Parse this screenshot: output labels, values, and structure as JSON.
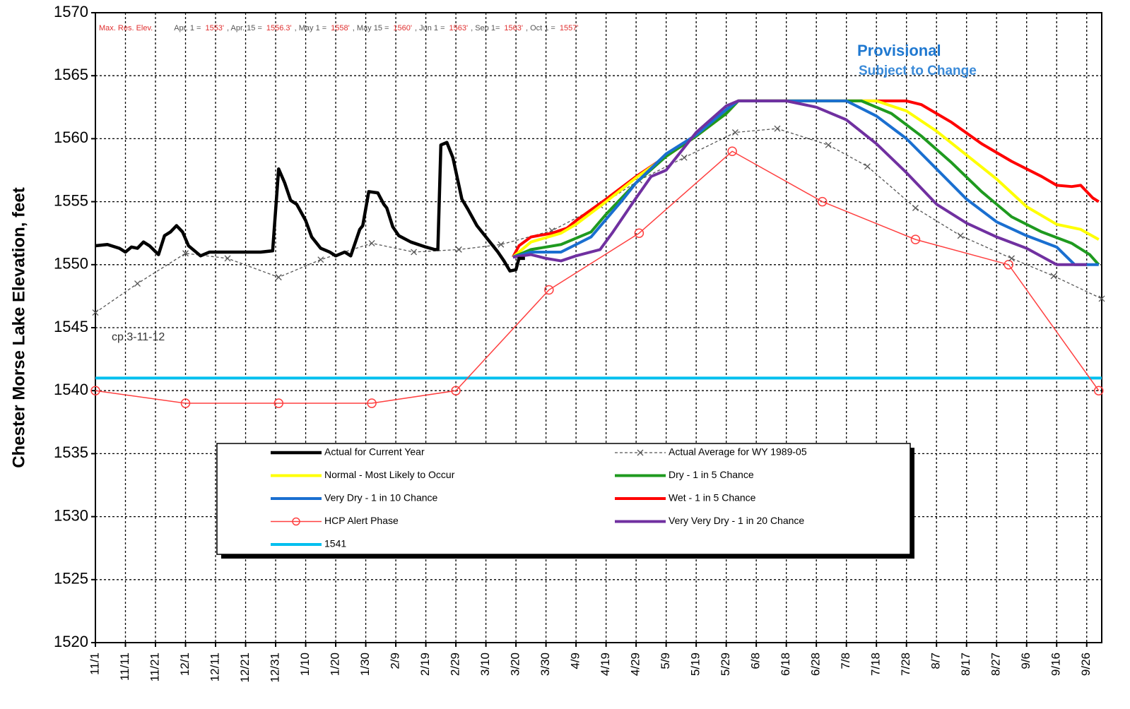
{
  "chart_data": {
    "type": "line",
    "ylabel": "Chester Morse Lake Elevation, feet",
    "header": {
      "label": "Max. Res. Elev.",
      "items": [
        {
          "label": "Apr. 1 =",
          "value": "1553'"
        },
        {
          "label": ", Apr. 15 =",
          "value": "1556.3'"
        },
        {
          "label": ", May 1 =",
          "value": "1558'"
        },
        {
          "label": ", May 15 =",
          "value": "1560'"
        },
        {
          "label": ", Jun 1 =",
          "value": "1563'"
        },
        {
          "label": ", Sep 1=",
          "value": "1563'"
        },
        {
          "label": ", Oct 1 =",
          "value": "1557'"
        }
      ]
    },
    "stamp": [
      "Provisional",
      "Subject to Change"
    ],
    "note": "cp 3-11-12",
    "ylim": [
      1520,
      1570
    ],
    "yticks": [
      1520,
      1525,
      1530,
      1535,
      1540,
      1545,
      1550,
      1555,
      1560,
      1565,
      1570
    ],
    "xlim": [
      0,
      335
    ],
    "xticks": [
      {
        "value": 0,
        "label": "11/1"
      },
      {
        "value": 10,
        "label": "11/11"
      },
      {
        "value": 20,
        "label": "11/21"
      },
      {
        "value": 30,
        "label": "12/1"
      },
      {
        "value": 40,
        "label": "12/11"
      },
      {
        "value": 50,
        "label": "12/21"
      },
      {
        "value": 60,
        "label": "12/31"
      },
      {
        "value": 70,
        "label": "1/10"
      },
      {
        "value": 80,
        "label": "1/20"
      },
      {
        "value": 90,
        "label": "1/30"
      },
      {
        "value": 100,
        "label": "2/9"
      },
      {
        "value": 110,
        "label": "2/19"
      },
      {
        "value": 120,
        "label": "2/29"
      },
      {
        "value": 130,
        "label": "3/10"
      },
      {
        "value": 140,
        "label": "3/20"
      },
      {
        "value": 150,
        "label": "3/30"
      },
      {
        "value": 160,
        "label": "4/9"
      },
      {
        "value": 170,
        "label": "4/19"
      },
      {
        "value": 180,
        "label": "4/29"
      },
      {
        "value": 190,
        "label": "5/9"
      },
      {
        "value": 200,
        "label": "5/19"
      },
      {
        "value": 210,
        "label": "5/29"
      },
      {
        "value": 220,
        "label": "6/8"
      },
      {
        "value": 230,
        "label": "6/18"
      },
      {
        "value": 240,
        "label": "6/28"
      },
      {
        "value": 250,
        "label": "7/8"
      },
      {
        "value": 260,
        "label": "7/18"
      },
      {
        "value": 270,
        "label": "7/28"
      },
      {
        "value": 280,
        "label": "8/7"
      },
      {
        "value": 290,
        "label": "8/17"
      },
      {
        "value": 300,
        "label": "8/27"
      },
      {
        "value": 310,
        "label": "9/6"
      },
      {
        "value": 320,
        "label": "9/16"
      },
      {
        "value": 330,
        "label": "9/26"
      }
    ],
    "grid": true,
    "series": [
      {
        "name": "Actual for Current Year",
        "color": "#000000",
        "style": "bold",
        "x": [
          0,
          4,
          8,
          10,
          12,
          14,
          16,
          18,
          21,
          23,
          25,
          27,
          29,
          31,
          35,
          38,
          45,
          55,
          59,
          61,
          63,
          65,
          67,
          70,
          72,
          75,
          78,
          80,
          83,
          85,
          88,
          89,
          91,
          94,
          96,
          97,
          99,
          101,
          105,
          110,
          113,
          114,
          115,
          117,
          119,
          122,
          124,
          127,
          131,
          134,
          136,
          138,
          140,
          141,
          143
        ],
        "values": [
          1551.5,
          1551.6,
          1551.3,
          1551,
          1551.4,
          1551.3,
          1551.8,
          1551.5,
          1550.8,
          1552.3,
          1552.6,
          1553.1,
          1552.6,
          1551.5,
          1550.7,
          1551,
          1551,
          1551,
          1551.1,
          1557.6,
          1556.5,
          1555.1,
          1554.8,
          1553.5,
          1552.2,
          1551.3,
          1551,
          1550.7,
          1551,
          1550.7,
          1552.8,
          1553.1,
          1555.8,
          1555.7,
          1554.8,
          1554.5,
          1553,
          1552.3,
          1551.8,
          1551.4,
          1551.2,
          1551.2,
          1559.5,
          1559.7,
          1558.5,
          1555.2,
          1554.4,
          1553.1,
          1551.9,
          1551,
          1550.3,
          1549.5,
          1549.6,
          1550.5,
          1550.5
        ]
      },
      {
        "name": "Actual Average for WY 1989-05",
        "color": "#555555",
        "style": "dashed",
        "marker": "x",
        "x": [
          0,
          14,
          30,
          44,
          61,
          75,
          92,
          106,
          121,
          135,
          152,
          168,
          181,
          196,
          213,
          227,
          244,
          257,
          273,
          288,
          305,
          319,
          335
        ],
        "values": [
          1546.2,
          1548.5,
          1550.9,
          1550.5,
          1549,
          1550.4,
          1551.7,
          1551,
          1551.2,
          1551.6,
          1552.7,
          1554.7,
          1556.7,
          1558.5,
          1560.5,
          1560.8,
          1559.5,
          1557.8,
          1554.5,
          1552.3,
          1550.5,
          1549.1,
          1547.3
        ]
      },
      {
        "name": "Normal - Most Likely to Occur",
        "color": "#ffff00",
        "style": "medium",
        "x": [
          139,
          145,
          155,
          160,
          170,
          180,
          190,
          200,
          210,
          214,
          260,
          270,
          280,
          290,
          300,
          310,
          320,
          328,
          334
        ],
        "values": [
          1550.6,
          1551.8,
          1552.5,
          1553.2,
          1555,
          1556.9,
          1558.6,
          1560.2,
          1562,
          1563,
          1563,
          1562.2,
          1560.6,
          1558.7,
          1556.8,
          1554.6,
          1553.2,
          1552.8,
          1552
        ]
      },
      {
        "name": "Dry - 1 in 5 Chance",
        "color": "#1f9a1f",
        "style": "medium",
        "x": [
          139,
          145,
          155,
          165,
          170,
          180,
          190,
          200,
          210,
          214,
          255,
          265,
          275,
          285,
          295,
          305,
          315,
          325,
          331,
          334
        ],
        "values": [
          1550.6,
          1551.2,
          1551.6,
          1552.6,
          1554,
          1556.5,
          1558.6,
          1560.2,
          1562,
          1563,
          1563,
          1562,
          1560.2,
          1558.1,
          1555.8,
          1553.8,
          1552.6,
          1551.7,
          1550.8,
          1550
        ]
      },
      {
        "name": "Very Dry - 1 in 10 Chance",
        "color": "#1a6fd0",
        "style": "medium",
        "x": [
          139,
          145,
          155,
          160,
          165,
          175,
          180,
          190,
          200,
          210,
          214,
          250,
          260,
          270,
          280,
          290,
          300,
          310,
          320,
          326,
          334
        ],
        "values": [
          1550.6,
          1551,
          1551,
          1551.6,
          1552.2,
          1555,
          1556.5,
          1558.8,
          1560.3,
          1562.3,
          1563,
          1563,
          1561.8,
          1560,
          1557.6,
          1555.2,
          1553.4,
          1552.3,
          1551.4,
          1550,
          1550
        ]
      },
      {
        "name": "Wet - 1 in 5 Chance",
        "color": "#ff0000",
        "style": "medium",
        "x": [
          139,
          141,
          145,
          152,
          157,
          160,
          170,
          180,
          190,
          200,
          210,
          214,
          270,
          275,
          285,
          295,
          305,
          315,
          320,
          325,
          328,
          332,
          334
        ],
        "values": [
          1550.6,
          1551.5,
          1552.2,
          1552.5,
          1552.9,
          1553.5,
          1555.2,
          1557,
          1558.6,
          1560.2,
          1562,
          1563,
          1563,
          1562.7,
          1561.3,
          1559.6,
          1558.2,
          1557,
          1556.3,
          1556.2,
          1556.3,
          1555.3,
          1555
        ]
      },
      {
        "name": "HCP Alert Phase",
        "color": "#ff4040",
        "style": "thin",
        "marker": "o",
        "x": [
          0,
          30,
          61,
          92,
          120,
          151,
          181,
          212,
          242,
          273,
          304,
          334
        ],
        "values": [
          1540,
          1539,
          1539,
          1539,
          1540,
          1548,
          1552.5,
          1559,
          1555,
          1552,
          1550,
          1540
        ]
      },
      {
        "name": "Very Very Dry - 1 in 20 Chance",
        "color": "#7030a0",
        "style": "medium",
        "x": [
          139,
          145,
          150,
          155,
          160,
          168,
          172,
          180,
          185,
          190,
          195,
          200,
          210,
          214,
          230,
          240,
          250,
          260,
          270,
          280,
          290,
          300,
          310,
          320,
          330
        ],
        "values": [
          1550.6,
          1550.8,
          1550.5,
          1550.3,
          1550.7,
          1551.2,
          1552.5,
          1555.3,
          1557,
          1557.5,
          1559,
          1560.5,
          1562.6,
          1563,
          1563,
          1562.5,
          1561.5,
          1559.6,
          1557.3,
          1554.8,
          1553.3,
          1552.2,
          1551.3,
          1550,
          1550
        ]
      },
      {
        "name": "1541",
        "color": "#00bfef",
        "style": "medium",
        "x": [
          0,
          335
        ],
        "values": [
          1541,
          1541
        ]
      }
    ]
  }
}
